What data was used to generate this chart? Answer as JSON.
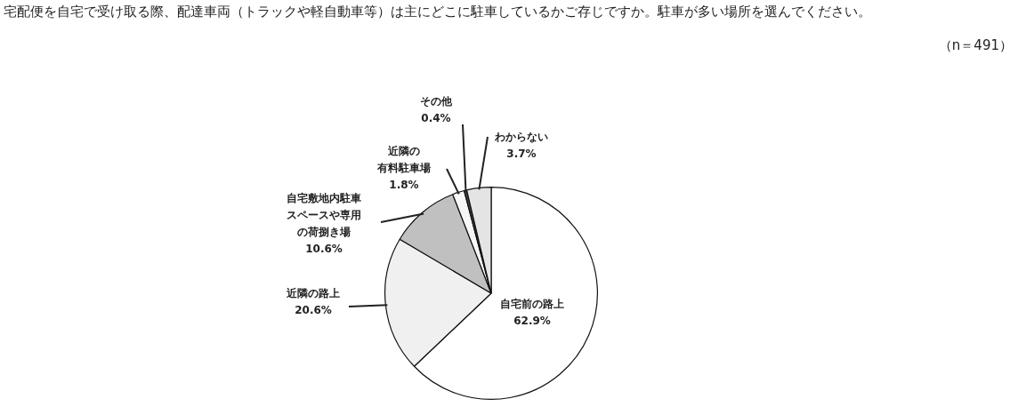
{
  "chart_data": {
    "type": "pie",
    "title": "宅配便を自宅で受け取る際、配達車両（トラックや軽自動車等）は主にどこに駐車しているかご存じですか。駐車が多い場所を選んでください。",
    "annotations": [
      "（n＝491）"
    ],
    "categories": [
      "自宅前の路上",
      "近隣の路上",
      "自宅敷地内駐車スペースや専用の荷捌き場",
      "近隣の有料駐車場",
      "その他",
      "わからない"
    ],
    "values": [
      62.9,
      20.6,
      10.6,
      1.8,
      0.4,
      3.7
    ],
    "value_labels": [
      "62.9%",
      "20.6%",
      "10.6%",
      "1.8%",
      "0.4%",
      "3.7%"
    ],
    "colors": [
      "#ffffff",
      "#f0f0f0",
      "#c0c0c0",
      "#f7f7f7",
      "#404040",
      "#e4e4e4"
    ]
  }
}
